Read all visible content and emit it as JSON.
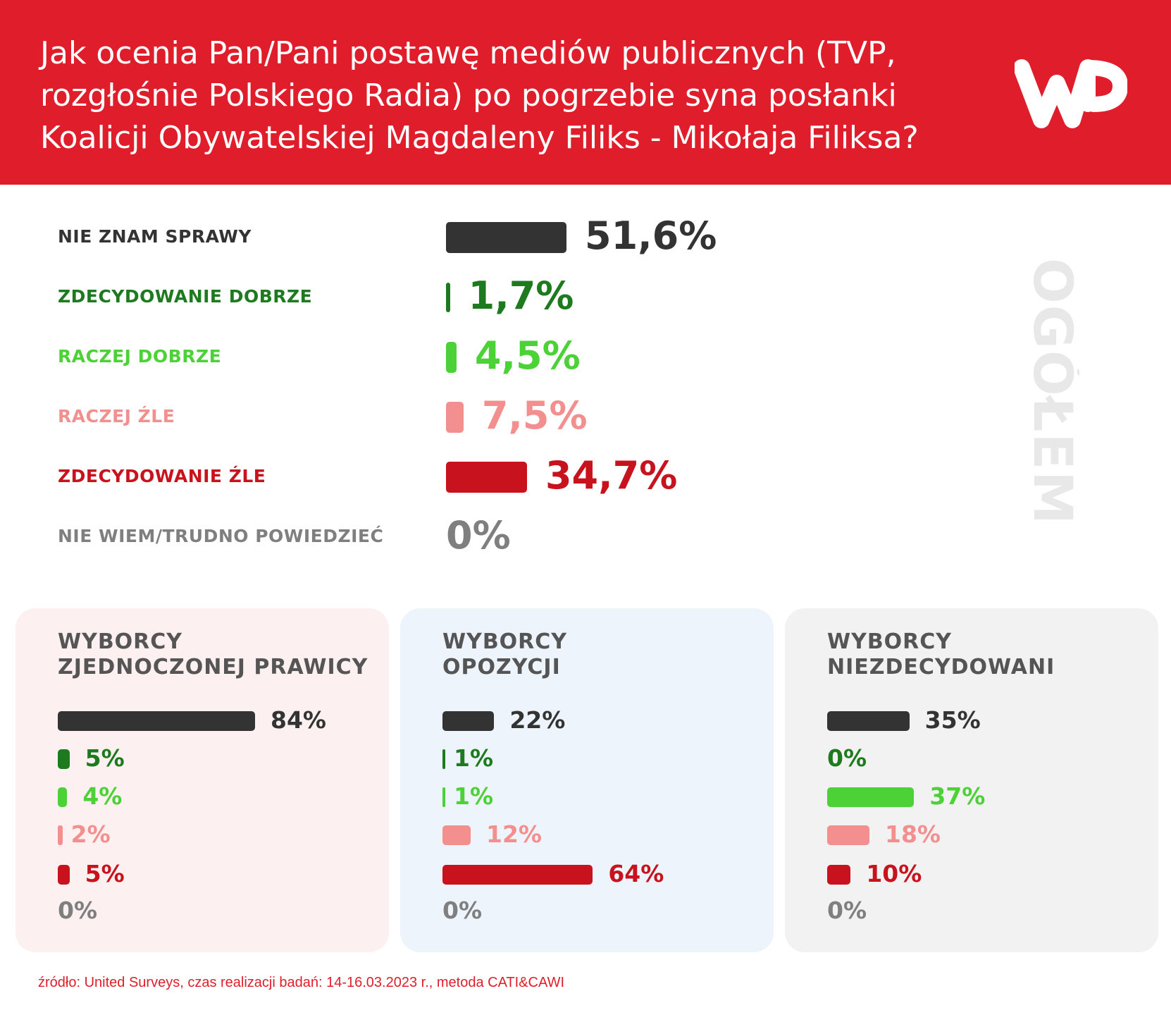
{
  "header": {
    "title": "Jak ocenia Pan/Pani postawę mediów publicznych (TVP, rozgłośnie Polskiego Radia) po pogrzebie syna posłanki Koalicji Obywatelskiej Magdaleny Filiks - Mikołaja Filiksa?",
    "logo": "WP",
    "logo_icon": "wp-logo-icon",
    "background": "#e01e2b"
  },
  "side_label": "OGÓŁEM",
  "colors": {
    "nie_znam": "#333333",
    "zdec_dobrze": "#1e7a1e",
    "raczej_dobrze": "#4cd137",
    "raczej_zle": "#f48f8f",
    "zdec_zle": "#c8131e",
    "nie_wiem": "#7f7f7f"
  },
  "chart_data": [
    {
      "type": "bar",
      "title": "OGÓŁEM",
      "categories": [
        "NIE ZNAM SPRAWY",
        "ZDECYDOWANIE DOBRZE",
        "RACZEJ DOBRZE",
        "RACZEJ ŹLE",
        "ZDECYDOWANIE ŹLE",
        "NIE WIEM/TRUDNO POWIEDZIEĆ"
      ],
      "values": [
        51.6,
        1.7,
        4.5,
        7.5,
        34.7,
        0
      ],
      "labels": [
        "51,6%",
        "1,7%",
        "4,5%",
        "7,5%",
        "34,7%",
        "0%"
      ],
      "unit": "%"
    },
    {
      "type": "bar",
      "title": "WYBORCY ZJEDNOCZONEJ PRAWICY",
      "title_lines": [
        "WYBORCY",
        "ZJEDNOCZONEJ PRAWICY"
      ],
      "values": [
        84,
        5,
        4,
        2,
        5,
        0
      ],
      "labels": [
        "84%",
        "5%",
        "4%",
        "2%",
        "5%",
        "0%"
      ],
      "unit": "%"
    },
    {
      "type": "bar",
      "title": "WYBORCY OPOZYCJI",
      "title_lines": [
        "WYBORCY",
        "OPOZYCJI"
      ],
      "values": [
        22,
        1,
        1,
        12,
        64,
        0
      ],
      "labels": [
        "22%",
        "1%",
        "1%",
        "12%",
        "64%",
        "0%"
      ],
      "unit": "%"
    },
    {
      "type": "bar",
      "title": "WYBORCY NIEZDECYDOWANI",
      "title_lines": [
        "WYBORCY",
        "NIEZDECYDOWANI"
      ],
      "values": [
        35,
        0,
        37,
        18,
        10,
        0
      ],
      "labels": [
        "35%",
        "0%",
        "37%",
        "18%",
        "10%",
        "0%"
      ],
      "unit": "%"
    }
  ],
  "panels_bg": [
    "#fdf0f0",
    "#edf4fc",
    "#f2f2f2"
  ],
  "source": "źródło: United Surveys, czas realizacji badań: 14-16.03.2023 r., metoda CATI&CAWI"
}
